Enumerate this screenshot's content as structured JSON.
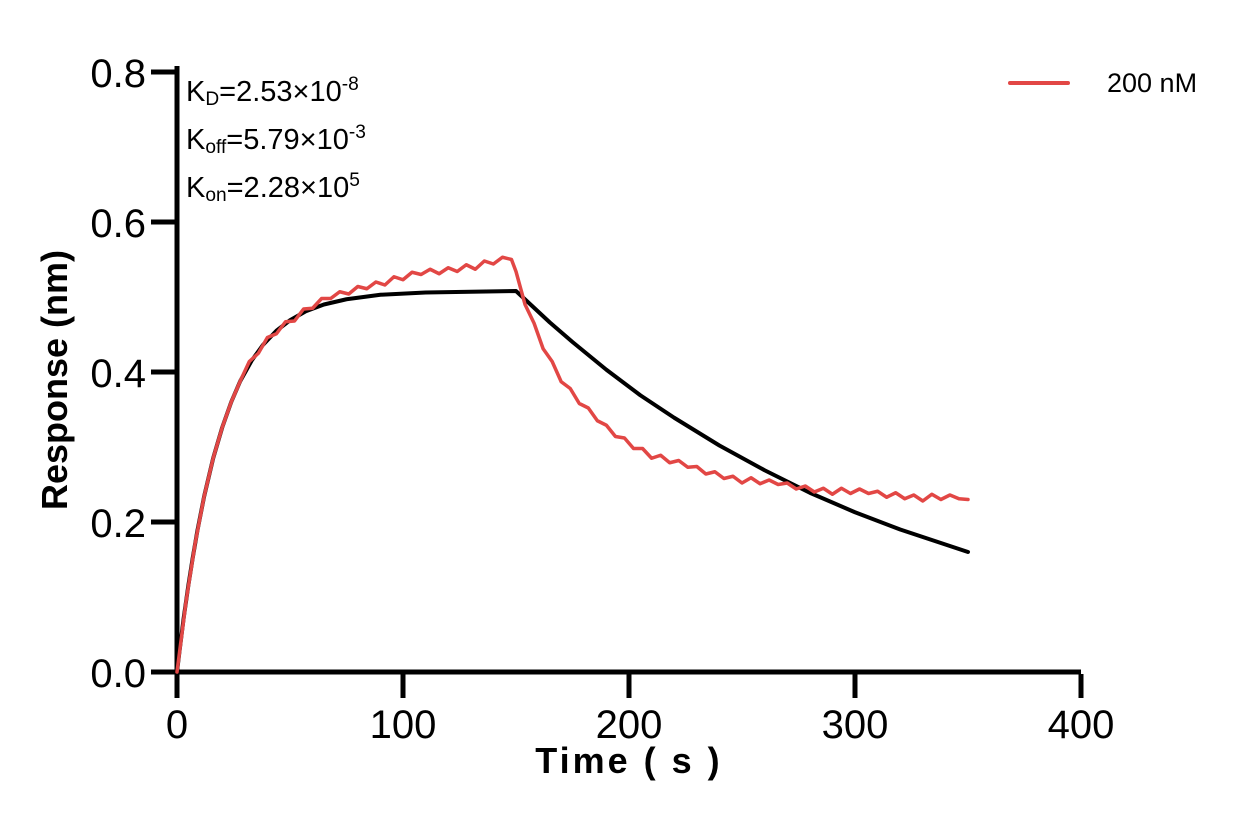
{
  "figure": {
    "background": "#ffffff",
    "text_color": "#000000",
    "legend": {
      "label": "200 nM",
      "color": "#E24745"
    },
    "kinetic_constants": {
      "KD": "2.53×10^-8",
      "Koff": "5.79×10^-3",
      "Kon": "2.28×10^5"
    },
    "annotations": [
      {
        "id": "kd-annotation",
        "segments": [
          {
            "text": "K"
          },
          {
            "sub": "D"
          },
          {
            "text": "=2.53×10"
          },
          {
            "sup": "-8"
          }
        ]
      },
      {
        "id": "koff-annotation",
        "segments": [
          {
            "text": "K"
          },
          {
            "sub": "off"
          },
          {
            "text": "=5.79×10"
          },
          {
            "sup": "-3"
          }
        ]
      },
      {
        "id": "kon-annotation",
        "segments": [
          {
            "text": "K"
          },
          {
            "sub": "on"
          },
          {
            "text": "=2.28×10"
          },
          {
            "sup": "5"
          }
        ]
      }
    ]
  },
  "chart_data": {
    "type": "line",
    "title": "",
    "xlabel": "Time ( s )",
    "ylabel": "Response (nm)",
    "xlim": [
      0,
      400
    ],
    "ylim": [
      0,
      0.8
    ],
    "x_ticks": [
      0,
      100,
      200,
      300,
      400
    ],
    "x_tick_labels": [
      "0",
      "100",
      "200",
      "300",
      "400"
    ],
    "y_ticks": [
      0,
      0.2,
      0.4,
      0.6,
      0.8
    ],
    "y_tick_labels": [
      "0.0",
      "0.2",
      "0.4",
      "0.6",
      "0.8"
    ],
    "grid": false,
    "legend_position": "top-right",
    "association_end_s": 150,
    "series": [
      {
        "name": "fitted curve",
        "role": "fitted-curve",
        "color": "#000000",
        "width": 4,
        "t": [
          0,
          1,
          3,
          5,
          7,
          9,
          12,
          16,
          20,
          24,
          28,
          33,
          38,
          44,
          50,
          57,
          65,
          75,
          90,
          110,
          130,
          150,
          155,
          165,
          175,
          190,
          205,
          220,
          240,
          260,
          280,
          300,
          320,
          350
        ],
        "v": [
          0.0,
          0.025,
          0.073,
          0.115,
          0.153,
          0.188,
          0.234,
          0.285,
          0.326,
          0.36,
          0.388,
          0.415,
          0.436,
          0.455,
          0.469,
          0.481,
          0.49,
          0.497,
          0.503,
          0.506,
          0.507,
          0.508,
          0.494,
          0.466,
          0.44,
          0.403,
          0.369,
          0.339,
          0.302,
          0.269,
          0.239,
          0.213,
          0.19,
          0.16
        ]
      },
      {
        "name": "200 nM",
        "role": "measured-200nM",
        "color": "#E24745",
        "width": 3.5,
        "t": [
          0,
          4,
          8,
          12,
          16,
          20,
          24,
          28,
          32,
          36,
          40,
          44,
          48,
          52,
          56,
          60,
          64,
          68,
          72,
          76,
          80,
          84,
          88,
          92,
          96,
          100,
          104,
          108,
          112,
          116,
          120,
          124,
          128,
          132,
          136,
          140,
          144,
          148,
          150,
          154,
          158,
          162,
          166,
          170,
          174,
          178,
          182,
          186,
          190,
          194,
          198,
          202,
          206,
          210,
          214,
          218,
          222,
          226,
          230,
          234,
          238,
          242,
          246,
          250,
          254,
          258,
          262,
          266,
          270,
          274,
          278,
          282,
          286,
          290,
          294,
          298,
          302,
          306,
          310,
          314,
          318,
          322,
          326,
          330,
          334,
          338,
          342,
          346,
          350
        ],
        "v": [
          0.0,
          0.094,
          0.171,
          0.234,
          0.285,
          0.326,
          0.36,
          0.388,
          0.414,
          0.425,
          0.446,
          0.451,
          0.467,
          0.468,
          0.484,
          0.485,
          0.498,
          0.498,
          0.507,
          0.504,
          0.514,
          0.511,
          0.52,
          0.516,
          0.527,
          0.523,
          0.533,
          0.53,
          0.537,
          0.531,
          0.539,
          0.534,
          0.543,
          0.537,
          0.548,
          0.544,
          0.553,
          0.55,
          0.534,
          0.49,
          0.465,
          0.431,
          0.414,
          0.387,
          0.378,
          0.358,
          0.352,
          0.335,
          0.329,
          0.314,
          0.312,
          0.298,
          0.298,
          0.285,
          0.289,
          0.279,
          0.282,
          0.273,
          0.274,
          0.264,
          0.267,
          0.258,
          0.261,
          0.252,
          0.259,
          0.251,
          0.256,
          0.25,
          0.252,
          0.244,
          0.248,
          0.24,
          0.245,
          0.237,
          0.245,
          0.238,
          0.244,
          0.238,
          0.241,
          0.233,
          0.239,
          0.231,
          0.236,
          0.228,
          0.237,
          0.23,
          0.236,
          0.231,
          0.23
        ]
      }
    ]
  }
}
